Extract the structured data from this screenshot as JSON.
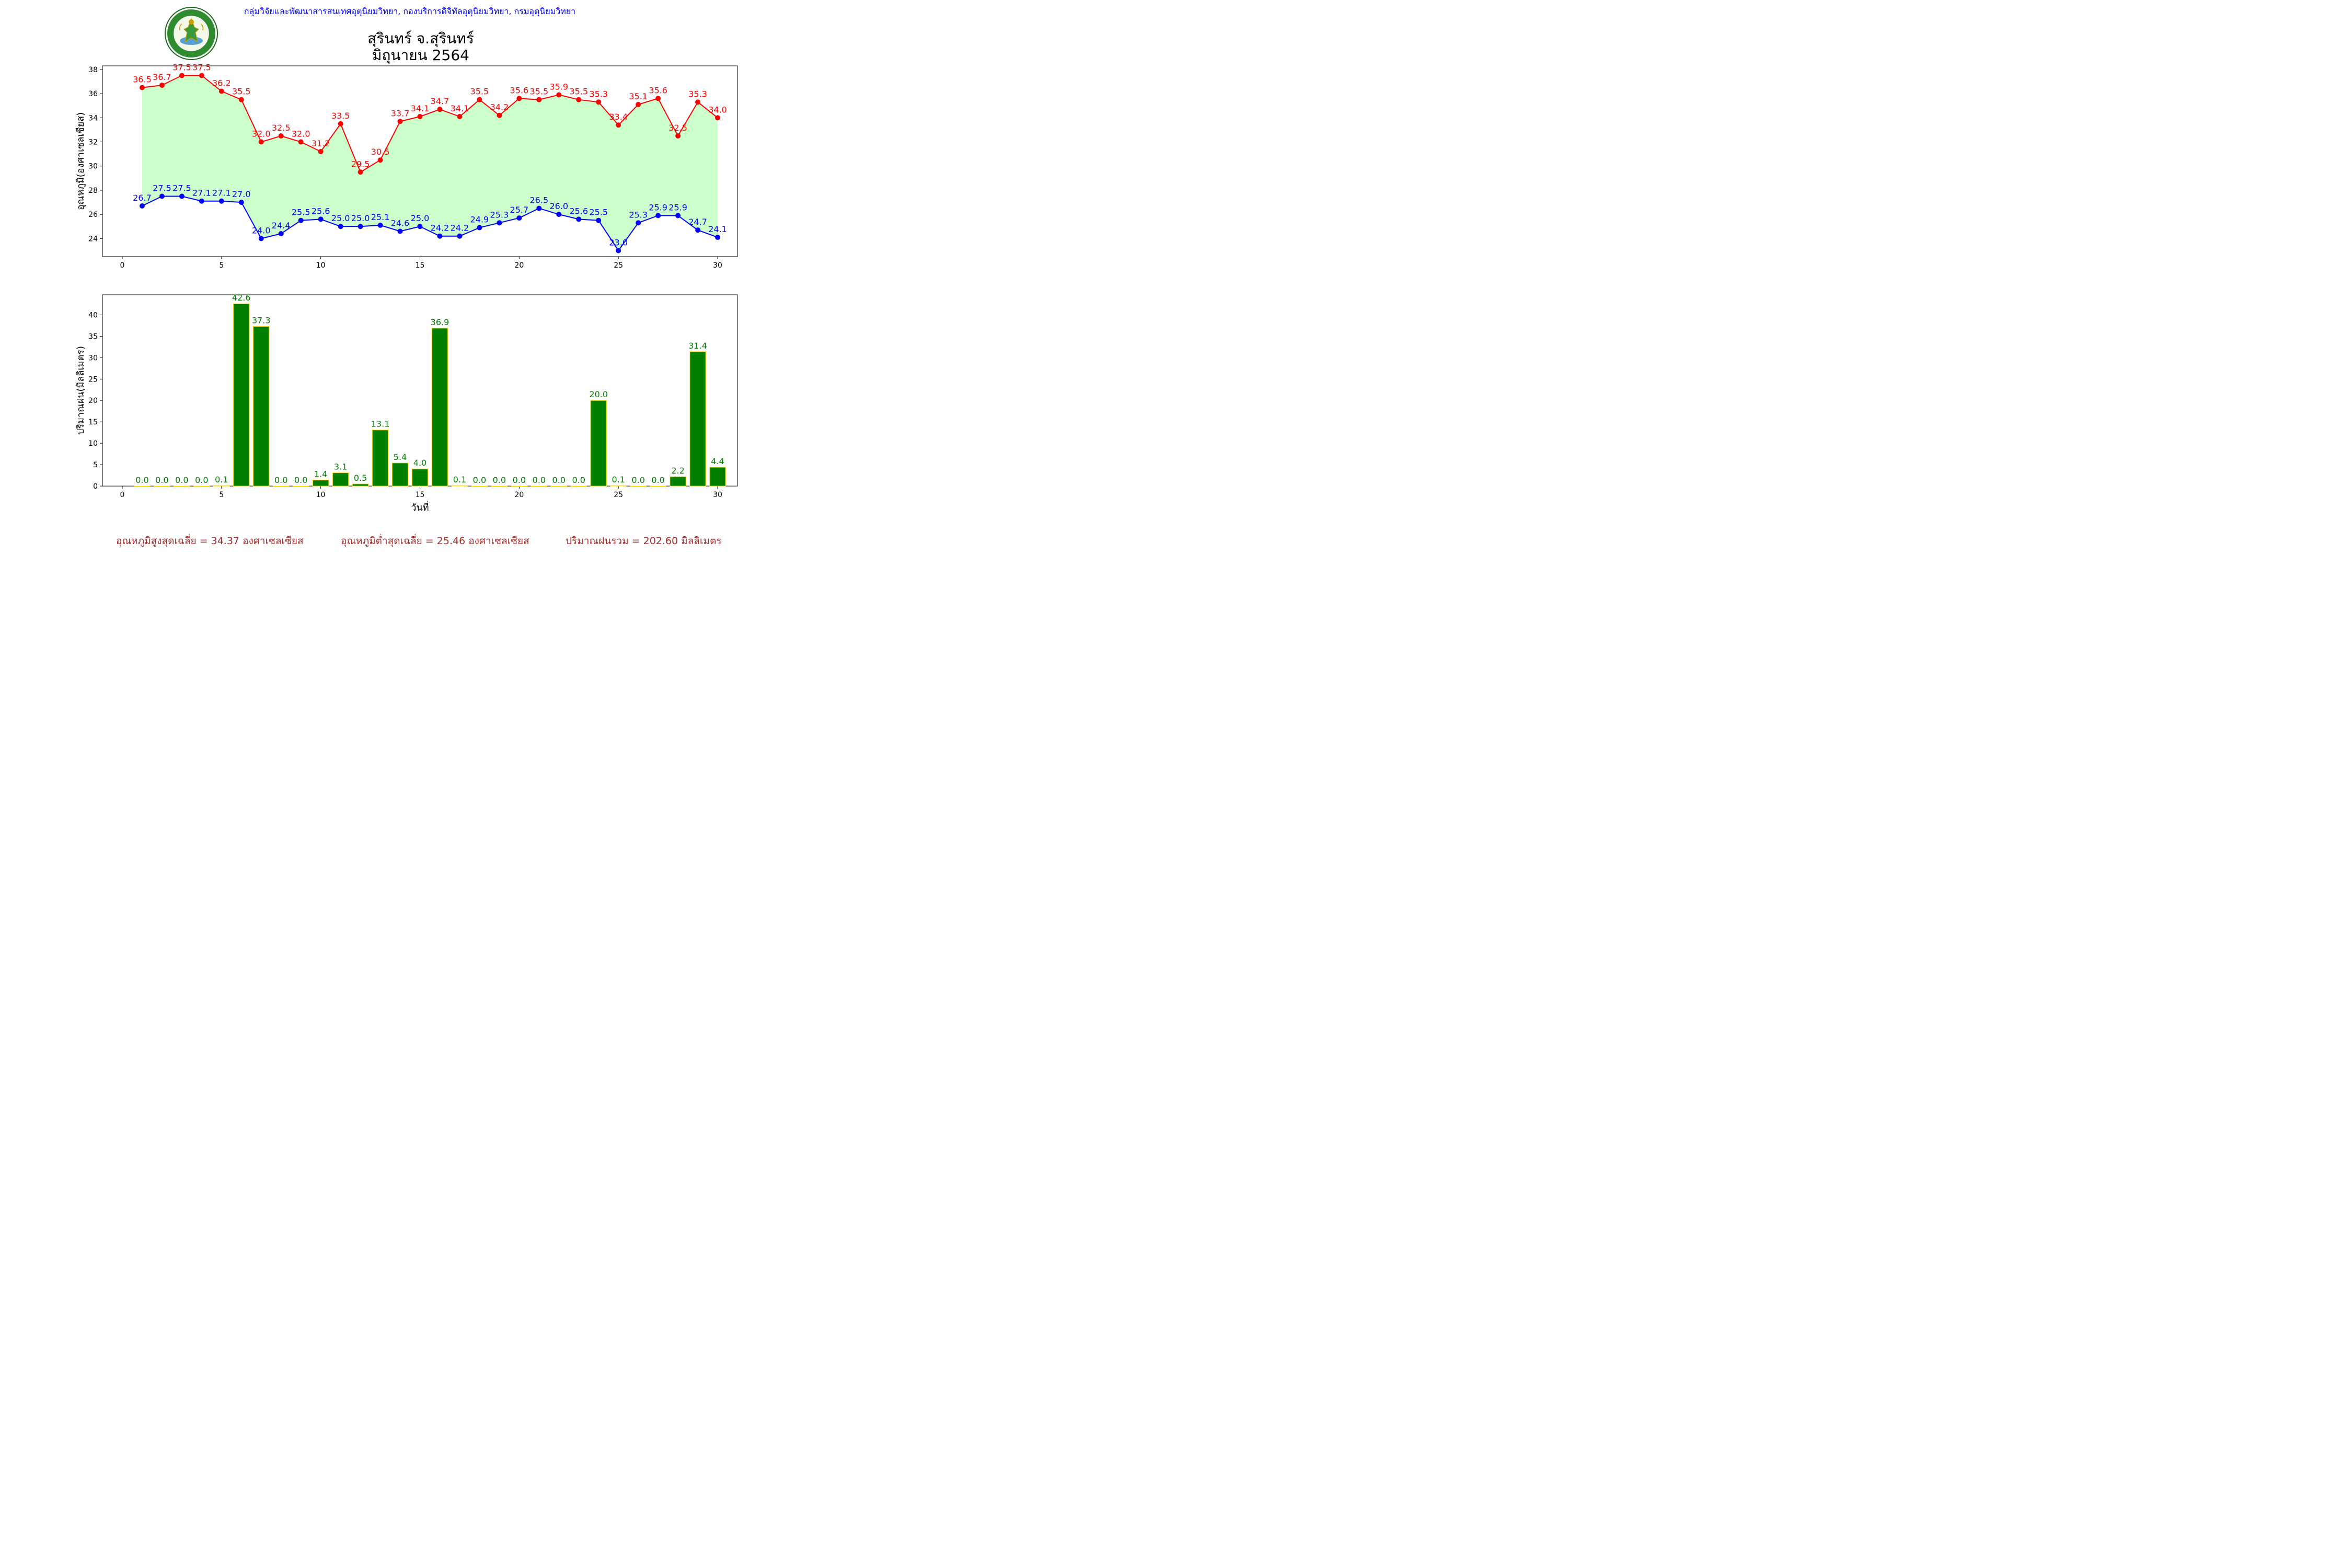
{
  "header": {
    "org_line": "กลุ่มวิจัยและพัฒนาสารสนเทศอุตุนิยมวิทยา, กองบริการดิจิทัลอุตุนิยมวิทยา, กรมอุตุนิยมวิทยา",
    "title_line1": "สุรินทร์ จ.สุรินทร์",
    "title_line2": "มิถุนายน 2564",
    "logo_text_top": "กรมอุตุนิยมวิทยา",
    "logo_text_bottom": "METEOROLOGICAL DEPARTMENT"
  },
  "chart_data": [
    {
      "type": "line",
      "ylabel": "อุณหภูมิ(องศาเซลเซียส)",
      "xlabel": "",
      "xlim": [
        -1,
        31
      ],
      "ylim": [
        22.5,
        38.3
      ],
      "xticks": [
        0,
        5,
        10,
        15,
        20,
        25,
        30
      ],
      "yticks": [
        24,
        26,
        28,
        30,
        32,
        34,
        36,
        38
      ],
      "fill_between": {
        "color": "#ccffcc",
        "from_series": 1,
        "to_series": 0
      },
      "x": [
        1,
        2,
        3,
        4,
        5,
        6,
        7,
        8,
        9,
        10,
        11,
        12,
        13,
        14,
        15,
        16,
        17,
        18,
        19,
        20,
        21,
        22,
        23,
        24,
        25,
        26,
        27,
        28,
        29,
        30
      ],
      "series": [
        {
          "color": "#ff0000",
          "values": [
            36.5,
            36.7,
            37.5,
            37.5,
            36.2,
            35.5,
            32.0,
            32.5,
            32.0,
            31.2,
            33.5,
            29.5,
            30.5,
            33.7,
            34.1,
            34.7,
            34.1,
            35.5,
            34.2,
            35.6,
            35.5,
            35.9,
            35.5,
            35.3,
            33.4,
            35.1,
            35.6,
            32.5,
            35.3,
            34.0
          ]
        },
        {
          "color": "#0000ff",
          "values": [
            26.7,
            27.5,
            27.5,
            27.1,
            27.1,
            27.0,
            24.0,
            24.4,
            25.5,
            25.6,
            25.0,
            25.0,
            25.1,
            24.6,
            25.0,
            24.2,
            24.2,
            24.9,
            25.3,
            25.7,
            26.5,
            26.0,
            25.6,
            25.5,
            23.0,
            25.3,
            25.9,
            25.9,
            24.7,
            24.1
          ]
        }
      ]
    },
    {
      "type": "bar",
      "ylabel": "ปริมาณฝน(มิลลิเมตร)",
      "xlabel": "วันที่",
      "xlim": [
        -1,
        31
      ],
      "ylim": [
        0,
        44.7
      ],
      "xticks": [
        0,
        5,
        10,
        15,
        20,
        25,
        30
      ],
      "yticks": [
        0,
        5,
        10,
        15,
        20,
        25,
        30,
        35,
        40
      ],
      "bar_color": "#008000",
      "bar_edge_color": "#ffd700",
      "label_color": "#008000",
      "x": [
        1,
        2,
        3,
        4,
        5,
        6,
        7,
        8,
        9,
        10,
        11,
        12,
        13,
        14,
        15,
        16,
        17,
        18,
        19,
        20,
        21,
        22,
        23,
        24,
        25,
        26,
        27,
        28,
        29,
        30
      ],
      "values": [
        0.0,
        0.0,
        0.0,
        0.0,
        0.1,
        42.6,
        37.3,
        0.0,
        0.0,
        1.4,
        3.1,
        0.5,
        13.1,
        5.4,
        4.0,
        36.9,
        0.1,
        0.0,
        0.0,
        0.0,
        0.0,
        0.0,
        0.0,
        20.0,
        0.1,
        0.0,
        0.0,
        2.2,
        31.4,
        4.4
      ]
    }
  ],
  "footer": {
    "avg_max": "อุณหภูมิสูงสุดเฉลี่ย = 34.37 องศาเซลเซียส",
    "avg_min": "อุณหภูมิต่ำสุดเฉลี่ย = 25.46 องศาเซลเซียส",
    "total_rain": "ปริมาณฝนรวม = 202.60 มิลลิเมตร"
  }
}
